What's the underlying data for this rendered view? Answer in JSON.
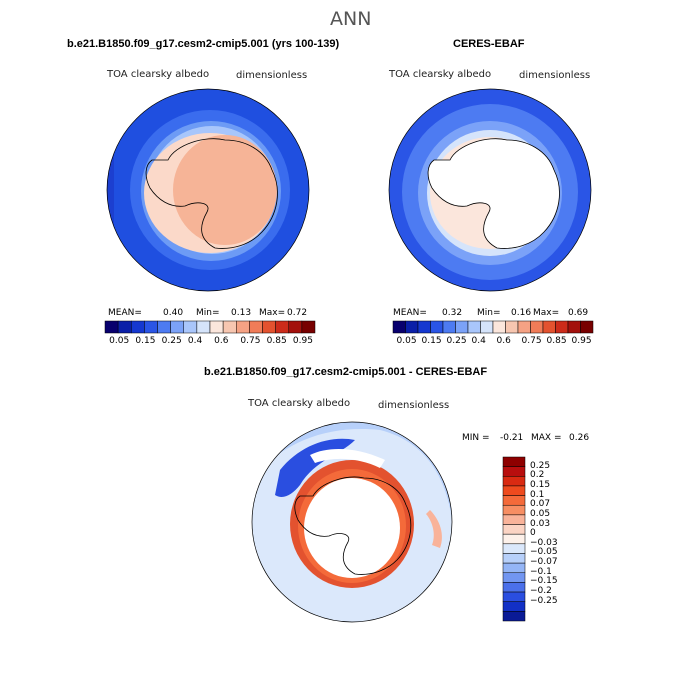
{
  "season": "ANN",
  "left_panel": {
    "title": "b.e21.B1850.f09_g17.cesm2-cmip5.001 (yrs 100-139)",
    "variable": "TOA clearsky albedo",
    "units": "dimensionless",
    "mean_label": "MEAN=",
    "mean": "0.40",
    "min_label": "Min=",
    "min": "0.13",
    "max_label": "Max=",
    "max": "0.72"
  },
  "right_panel": {
    "title": "CERES-EBAF",
    "variable": "TOA clearsky albedo",
    "units": "dimensionless",
    "mean_label": "MEAN=",
    "mean": "0.32",
    "min_label": "Min=",
    "min": "0.16",
    "max_label": "Max=",
    "max": "0.69"
  },
  "abs_colorbar": {
    "colors": [
      "#08006e",
      "#0a1fa8",
      "#1538d0",
      "#2a55e6",
      "#4d7bf2",
      "#7ba2f8",
      "#a9c6fb",
      "#d5e4fb",
      "#fbe6dc",
      "#f7c6b0",
      "#f5a284",
      "#f07c58",
      "#e3522f",
      "#cc2b1a",
      "#a3100c",
      "#780000"
    ],
    "labels": [
      "0.05",
      "0.15",
      "0.25",
      "0.4",
      "0.6",
      "0.75",
      "0.85",
      "0.95"
    ]
  },
  "diff_panel": {
    "title": "b.e21.B1850.f09_g17.cesm2-cmip5.001 - CERES-EBAF",
    "variable": "TOA clearsky albedo",
    "units": "dimensionless",
    "min_label": "MIN =",
    "min": "-0.21",
    "max_label": "MAX =",
    "max": "0.26"
  },
  "diff_colorbar": {
    "colors": [
      "#8e0000",
      "#b80e0e",
      "#d92a12",
      "#ee4a1e",
      "#f46a3a",
      "#f78e63",
      "#f9b39a",
      "#fbd4c4",
      "#fdf1ea",
      "#dbe8fb",
      "#b7d0fa",
      "#94b5f6",
      "#7296f1",
      "#4b70ea",
      "#2a4ee0",
      "#1230c6",
      "#0a1a96"
    ],
    "labels": [
      "0.25",
      "0.2",
      "0.15",
      "0.1",
      "0.07",
      "0.05",
      "0.03",
      "0",
      "−0.03",
      "−0.05",
      "−0.07",
      "−0.1",
      "−0.15",
      "−0.2",
      "−0.25"
    ]
  }
}
